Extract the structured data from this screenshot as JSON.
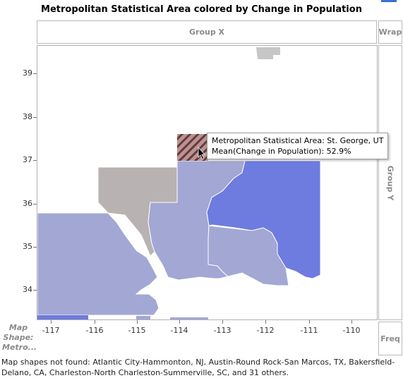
{
  "title": "Metropolitan Statistical Area colored by Change in Population",
  "zones": {
    "group_x": "Group X",
    "wrap": "Wrap",
    "group_y": "Group Y",
    "freq": "Freq",
    "map_shape_line1": "Map",
    "map_shape_line2": "Shape:",
    "map_shape_line3": "Metro..."
  },
  "axes": {
    "y_ticks": [
      "39",
      "38",
      "37",
      "36",
      "35",
      "34"
    ],
    "x_ticks": [
      "-117",
      "-116",
      "-115",
      "-114",
      "-113",
      "-112",
      "-111",
      "-110"
    ]
  },
  "tooltip": {
    "line1": "Metropolitan Statistical Area: St. George, UT",
    "line2": "Mean(Change in Population): 52.9%"
  },
  "footer": "Map shapes not found: Atlantic City-Hammonton, NJ, Austin-Round Rock-San Marcos, TX, Bakersfield-Delano, CA, Charleston-North Charleston-Summerville, SC, and 31 others.",
  "colors": {
    "high_growth": "#6e7bdf",
    "mid_growth": "#a3a7d4",
    "low_growth": "#b9b2b2",
    "gray_region": "#c6c6c6",
    "highlight_stripe": "#c29090"
  },
  "highlighted_region": "St. George, UT"
}
